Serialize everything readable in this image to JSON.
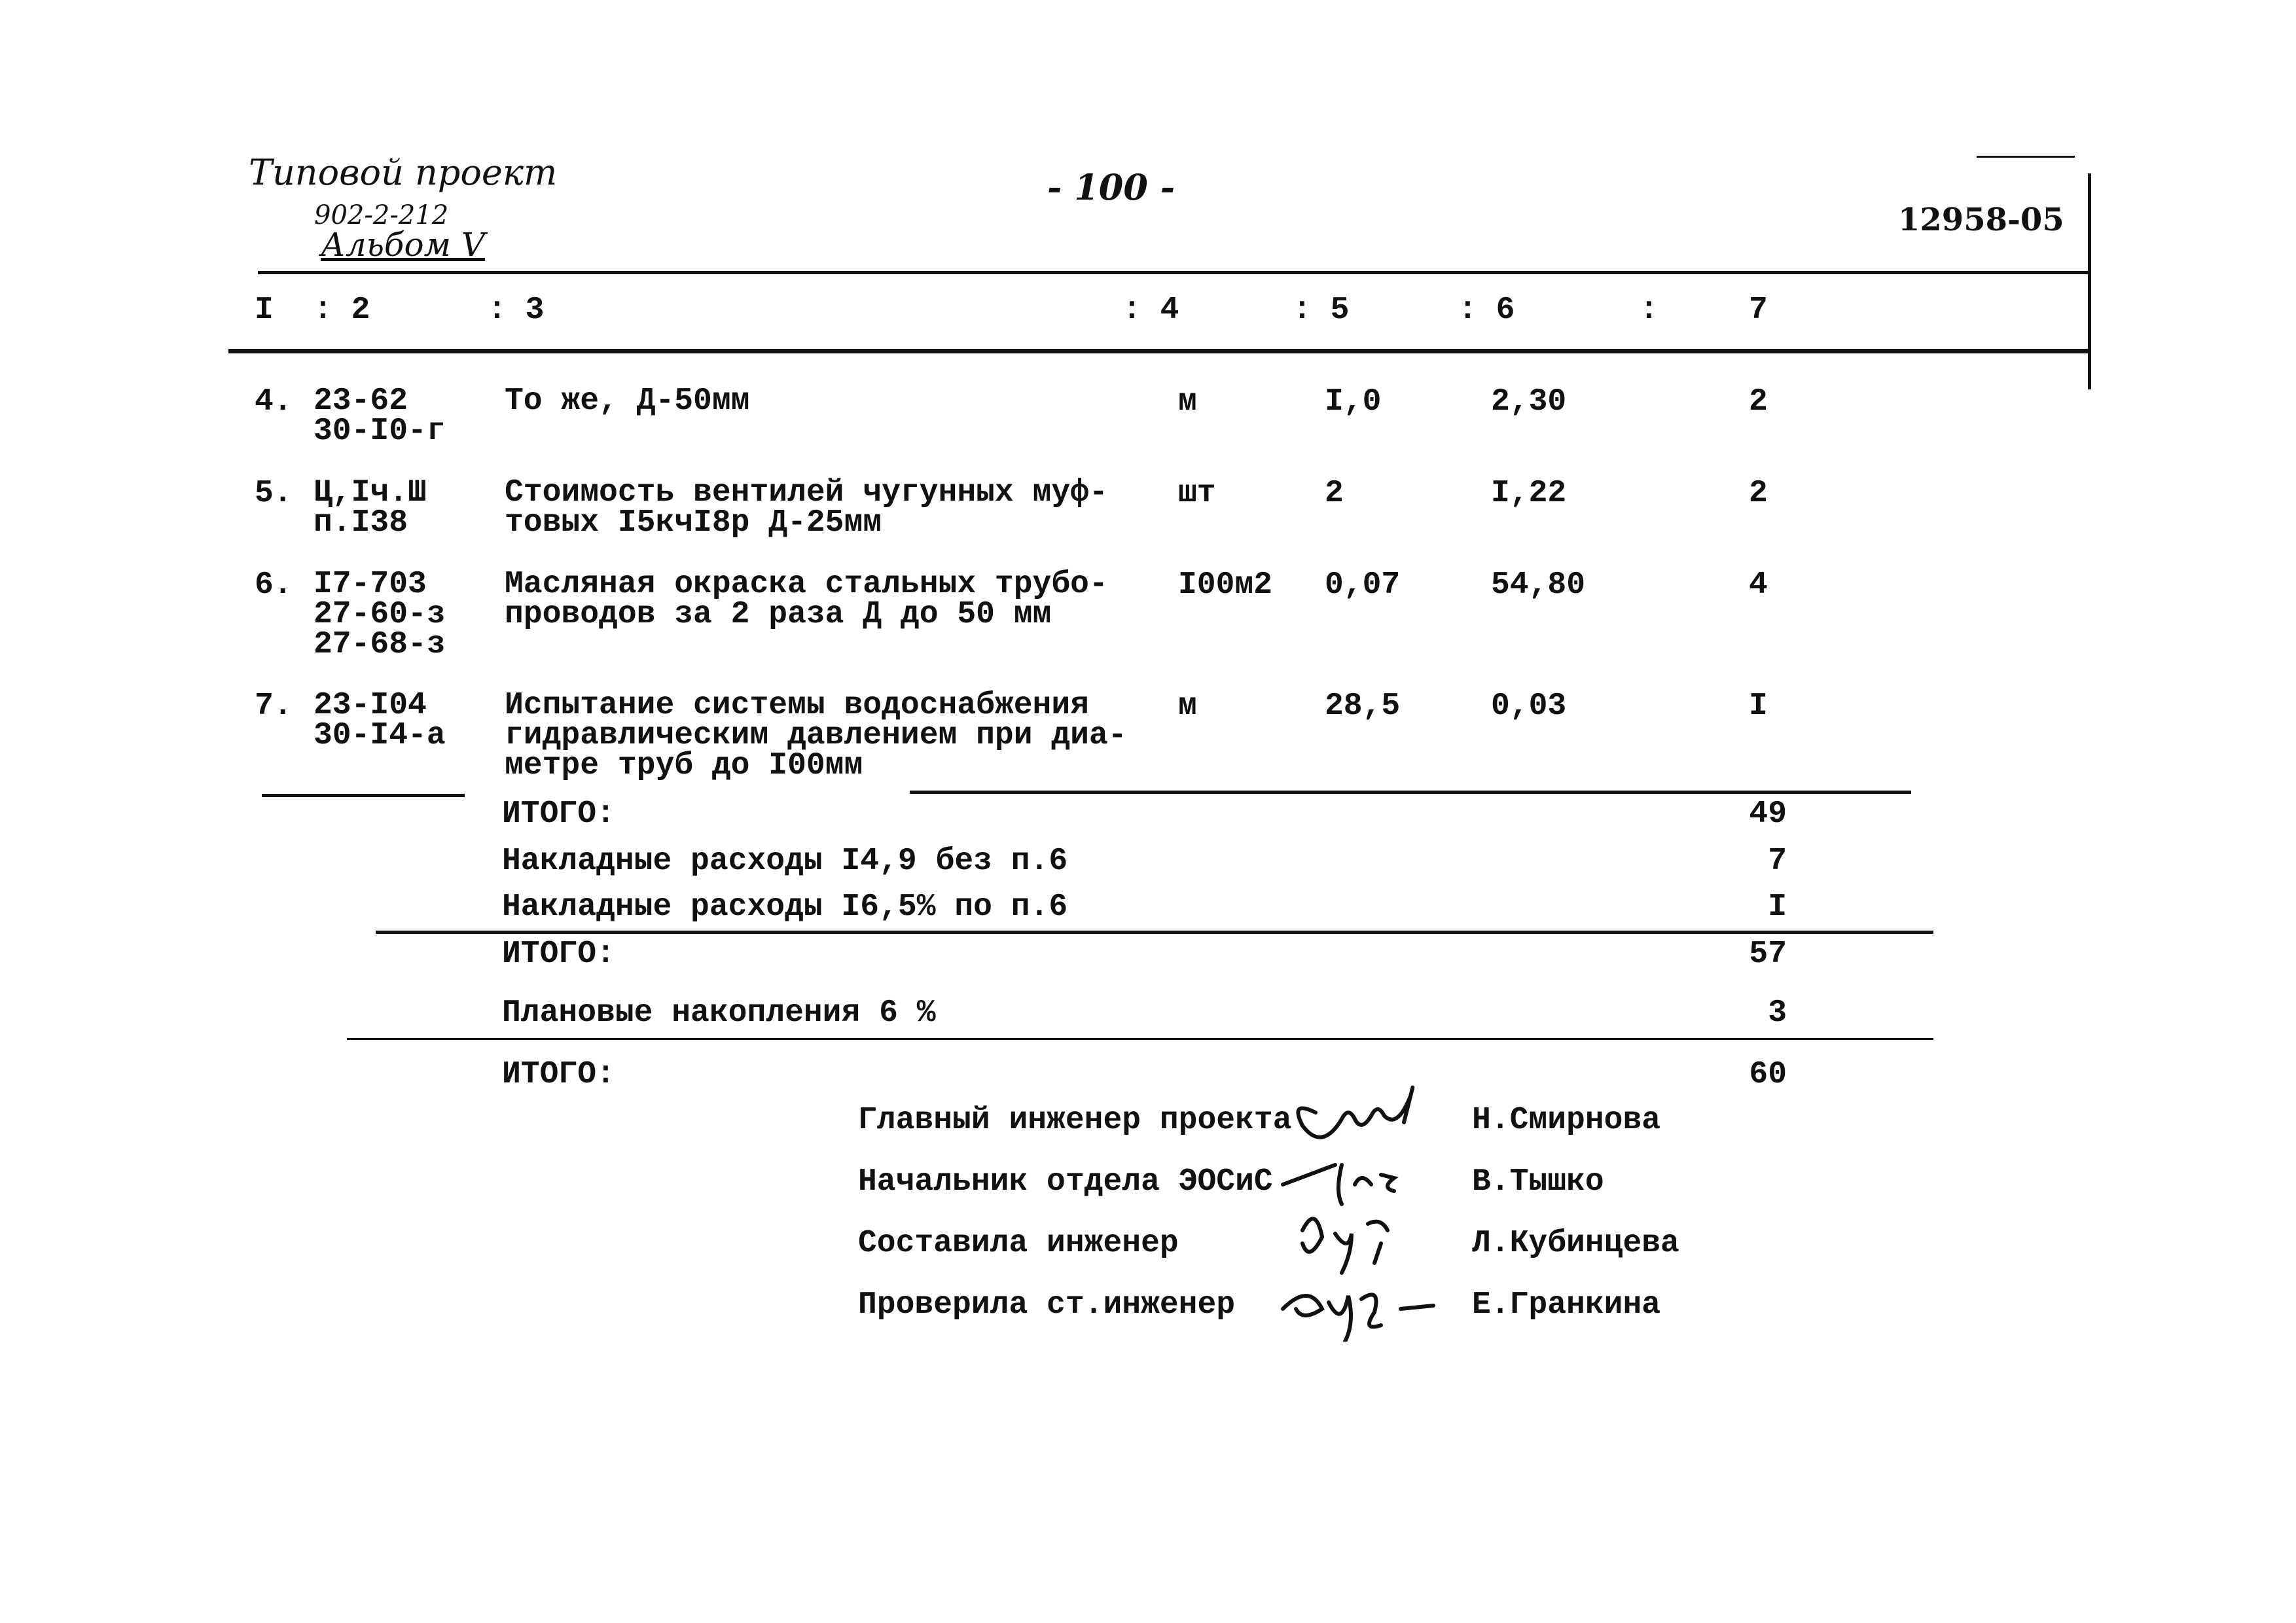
{
  "header": {
    "project_handwritten": "Типовой проект",
    "project_number": "902-2-212",
    "album": "Альбом V",
    "page_number": "- 100 -",
    "doc_code": "12958-05"
  },
  "columns": [
    "I",
    ": 2",
    ": 3",
    ": 4",
    ": 5",
    ": 6",
    ":",
    "7"
  ],
  "rows": [
    {
      "num": "4.",
      "code": "23-62\n30-I0-г",
      "description": "То же, Д-50мм",
      "unit": "м",
      "qty": "I,0",
      "price": "2,30",
      "total": "2"
    },
    {
      "num": "5.",
      "code": "Ц,Iч.Ш\nп.I38",
      "description": "Стоимость вентилей чугунных муф-\nтовых I5кчI8р Д-25мм",
      "unit": "шт",
      "qty": "2",
      "price": "I,22",
      "total": "2"
    },
    {
      "num": "6.",
      "code": "I7-703\n27-60-з\n27-68-з",
      "description": "Масляная окраска стальных трубо-\nпроводов за 2 раза Д до 50 мм",
      "unit": "I00м2",
      "qty": "0,07",
      "price": "54,80",
      "total": "4"
    },
    {
      "num": "7.",
      "code": "23-I04\n30-I4-а",
      "description": "Испытание системы водоснабжения\nгидравлическим давлением при диа-\nметре труб до I00мм",
      "unit": "м",
      "qty": "28,5",
      "price": "0,03",
      "total": "I"
    }
  ],
  "totals": [
    {
      "label": "ИТОГО:",
      "value": "49"
    },
    {
      "label": "Накладные расходы I4,9 без п.6",
      "value": "7"
    },
    {
      "label": "Накладные расходы I6,5% по п.6",
      "value": "I"
    },
    {
      "label": "ИТОГО:",
      "value": "57"
    },
    {
      "label": "Плановые накопления 6 %",
      "value": "3"
    },
    {
      "label": "ИТОГО:",
      "value": "60"
    }
  ],
  "signatures": [
    {
      "role": "Главный инженер проекта",
      "name": "Н.Смирнова"
    },
    {
      "role": "Начальник отдела ЭОСиС",
      "name": "В.Тышко"
    },
    {
      "role": "Составила инженер",
      "name": "Л.Кубинцева"
    },
    {
      "role": "Проверила ст.инженер",
      "name": "Е.Гранкина"
    }
  ]
}
